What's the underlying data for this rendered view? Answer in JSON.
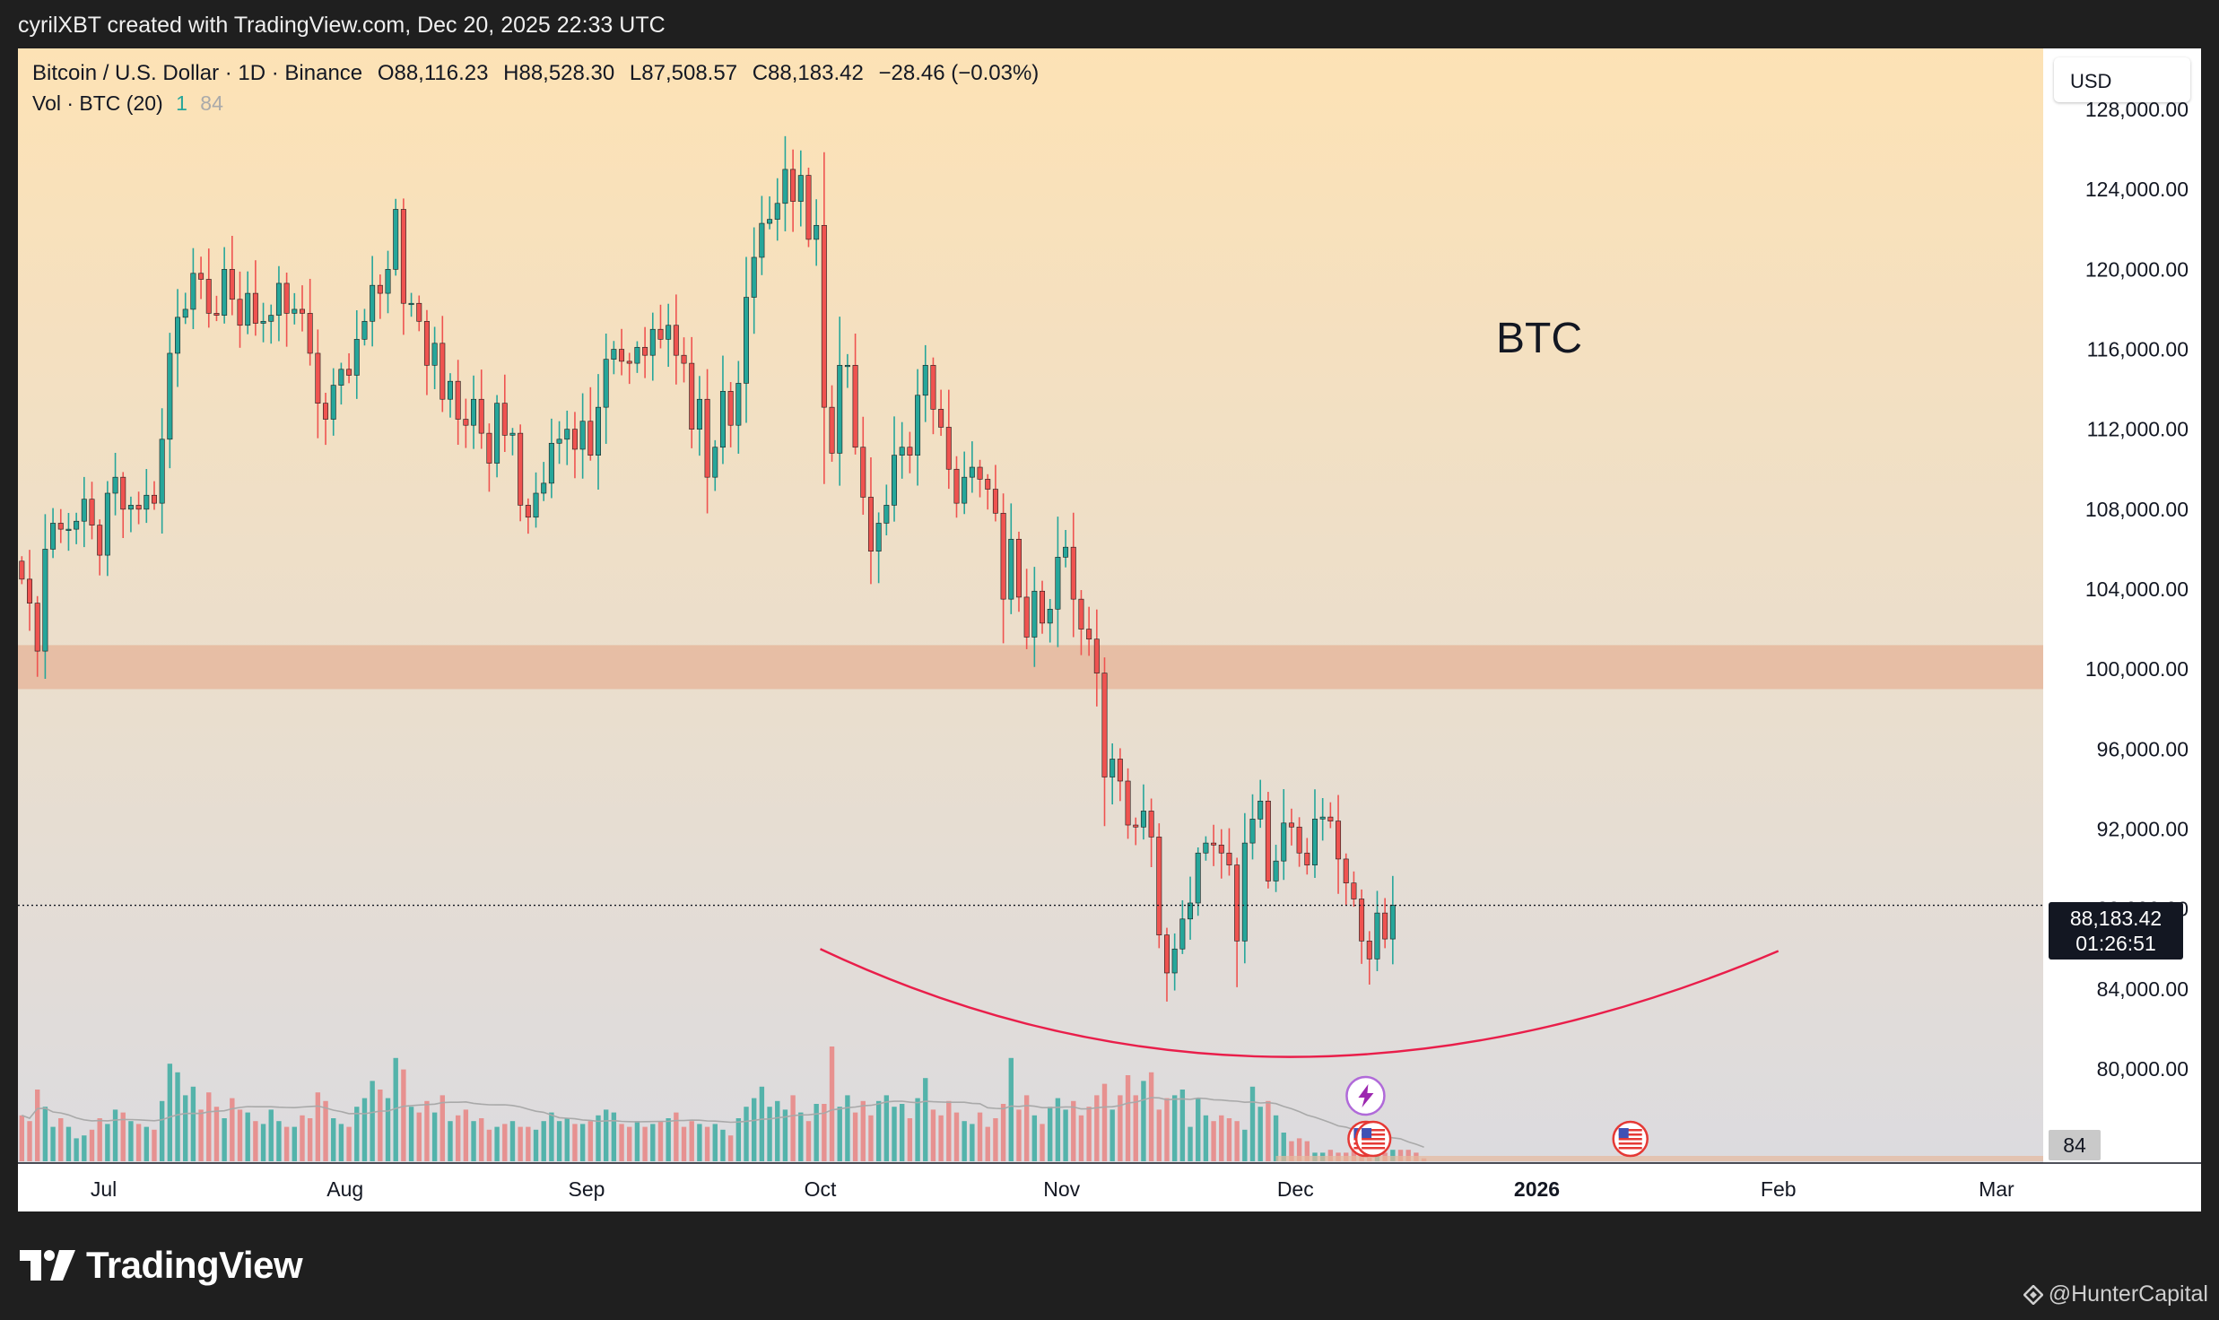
{
  "header": {
    "credit": "cyrilXBT created with TradingView.com, Dec 20, 2025 22:33 UTC"
  },
  "legend": {
    "symbol": "Bitcoin / U.S. Dollar · 1D · Binance",
    "open": "O88,116.23",
    "high": "H88,528.30",
    "low": "L87,508.57",
    "close": "C88,183.42",
    "change": "−28.46 (−0.03%)",
    "volume_label": "Vol · BTC (20)",
    "volume_value_1": "1",
    "volume_value_2": "84"
  },
  "currency_button": "USD",
  "annotation_label": "BTC",
  "last_price_tag": {
    "price": "88,183.42",
    "countdown": "01:26:51"
  },
  "volume_tag": "84",
  "footer": {
    "brand": "TradingView",
    "watermark": "@HunterCapital"
  },
  "colors": {
    "up": "#26a69a",
    "down": "#ef5350",
    "zone": "#e6b99d",
    "curve": "#e91e4a",
    "bg_top": "#fde2b5",
    "bg_bottom": "#dcdbdf"
  },
  "icons": [
    "tradingview-logo-icon",
    "us-flag-event-icon",
    "earnings-lightning-icon",
    "binance-diamond-icon"
  ],
  "chart_data": {
    "type": "candlestick",
    "y_axis": {
      "range": [
        78000,
        129000
      ],
      "ticks": [
        80000,
        84000,
        88000,
        92000,
        96000,
        100000,
        104000,
        108000,
        112000,
        116000,
        120000,
        124000,
        128000
      ],
      "tick_labels": [
        "80,000.00",
        "84,000.00",
        "88,000.00",
        "92,000.00",
        "96,000.00",
        "100,000.00",
        "104,000.00",
        "108,000.00",
        "112,000.00",
        "116,000.00",
        "120,000.00",
        "124,000.00",
        "128,000.00"
      ]
    },
    "x_axis": {
      "range": [
        "2025-06-20",
        "2026-03-07"
      ],
      "ticks": [
        {
          "date": "2025-07-01",
          "label": "Jul"
        },
        {
          "date": "2025-08-01",
          "label": "Aug"
        },
        {
          "date": "2025-09-01",
          "label": "Sep"
        },
        {
          "date": "2025-10-01",
          "label": "Oct"
        },
        {
          "date": "2025-11-01",
          "label": "Nov"
        },
        {
          "date": "2025-12-01",
          "label": "Dec"
        },
        {
          "date": "2026-01-01",
          "label": "2026"
        },
        {
          "date": "2026-02-01",
          "label": "Feb"
        },
        {
          "date": "2026-03-01",
          "label": "Mar"
        }
      ]
    },
    "start_date": "2025-06-20",
    "close_series": [
      104500,
      103300,
      100900,
      106000,
      107300,
      107000,
      107000,
      107400,
      108500,
      107200,
      105700,
      108800,
      109600,
      108000,
      108200,
      108000,
      108700,
      108300,
      111500,
      115800,
      117600,
      118000,
      119800,
      119500,
      117800,
      117700,
      120000,
      118500,
      117200,
      118800,
      117300,
      117400,
      117700,
      119300,
      117800,
      118000,
      117800,
      115800,
      113300,
      112500,
      114200,
      115000,
      114700,
      116500,
      117400,
      119200,
      118800,
      120000,
      123000,
      118300,
      118300,
      117400,
      115200,
      116300,
      113500,
      114400,
      112500,
      112200,
      113500,
      111800,
      110300,
      113300,
      111700,
      111800,
      108200,
      107600,
      108800,
      109300,
      111300,
      111500,
      112000,
      111000,
      112400,
      110700,
      113100,
      115500,
      116000,
      115400,
      115300,
      116100,
      115700,
      117000,
      116500,
      117200,
      115700,
      115300,
      112000,
      113500,
      109600,
      111100,
      113900,
      112200,
      114300,
      118600,
      120600,
      122300,
      122500,
      123300,
      125000,
      123400,
      124700,
      121500,
      122200,
      113100,
      110800,
      115200,
      115200,
      111100,
      108600,
      105900,
      107300,
      108200,
      110700,
      111100,
      110700,
      113700,
      115200,
      113000,
      112100,
      110000,
      108300,
      109600,
      110100,
      109500,
      109000,
      107800,
      103500,
      106500,
      103600,
      101600,
      103900,
      102300,
      103000,
      105600,
      106100,
      103500,
      102000,
      101500,
      99800,
      94600,
      95500,
      94400,
      92200,
      92100,
      92900,
      91600,
      86700,
      84800,
      86000,
      87500,
      88300,
      90800,
      91300,
      91200,
      90800,
      90200,
      86400,
      91300,
      92500,
      93400,
      89400,
      90400,
      92300,
      92100,
      90800,
      90200,
      92500,
      92600,
      92400,
      90500,
      89300,
      88500,
      86400,
      85500,
      87800,
      86500,
      88184
    ],
    "volume_series": [
      16,
      14,
      25,
      19,
      12,
      15,
      12,
      8,
      9,
      11,
      15,
      13,
      18,
      17,
      14,
      13,
      12,
      11,
      21,
      34,
      31,
      23,
      26,
      18,
      24,
      19,
      15,
      22,
      18,
      17,
      14,
      13,
      18,
      14,
      12,
      12,
      16,
      15,
      24,
      21,
      15,
      13,
      12,
      19,
      22,
      28,
      25,
      22,
      36,
      32,
      19,
      17,
      21,
      17,
      23,
      14,
      16,
      18,
      14,
      15,
      11,
      12,
      13,
      14,
      12,
      12,
      11,
      14,
      17,
      14,
      15,
      13,
      13,
      14,
      16,
      18,
      17,
      13,
      12,
      14,
      12,
      13,
      14,
      15,
      17,
      12,
      14,
      13,
      12,
      13,
      11,
      9,
      15,
      19,
      22,
      26,
      19,
      21,
      18,
      23,
      17,
      14,
      20,
      20,
      40,
      19,
      23,
      17,
      21,
      16,
      21,
      23,
      19,
      20,
      15,
      22,
      29,
      18,
      16,
      21,
      17,
      14,
      13,
      17,
      12,
      15,
      20,
      36,
      18,
      23,
      16,
      13,
      19,
      22,
      18,
      21,
      16,
      19,
      23,
      27,
      18,
      23,
      30,
      23,
      28,
      31,
      18,
      22,
      23,
      25,
      12,
      22,
      16,
      14,
      16,
      15,
      14,
      11,
      26,
      19,
      21,
      16,
      10,
      7,
      8,
      7,
      3,
      3,
      4,
      3,
      3,
      4,
      3,
      4,
      5,
      3,
      4,
      4,
      4,
      3,
      1
    ],
    "volume_last": 84,
    "last_price": 88183.42,
    "zone": {
      "from": 99000,
      "to": 101200
    },
    "curve": {
      "start": [
        "2025-10-01",
        86000
      ],
      "min": [
        "2025-11-30",
        80600
      ],
      "end": [
        "2026-02-01",
        85900
      ]
    }
  }
}
